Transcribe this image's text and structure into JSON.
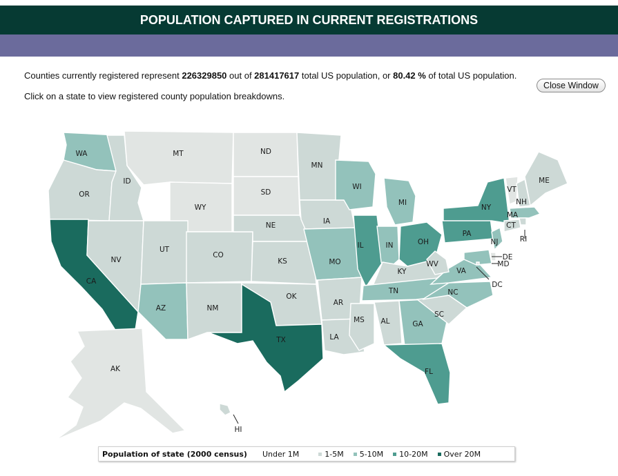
{
  "header": {
    "title": "POPULATION CAPTURED IN CURRENT REGISTRATIONS"
  },
  "stats": {
    "prefix": "Counties currently registered represent ",
    "registered_population": "226329850",
    "middle": " out of ",
    "total_population": "281417617",
    "suffix": " total US population, or ",
    "percent": "80.42 %",
    "end": " of total US population."
  },
  "instruction": "Click on a state to view registered county population breakdowns.",
  "close_button": "Close Window",
  "colors": {
    "under_1m": "#e1e5e3",
    "1_5m": "#cdd9d6",
    "5_10m": "#93c2bb",
    "10_20m": "#4e9c90",
    "over_20m": "#1a6b5e",
    "title_bar": "#063a33",
    "sub_bar": "#6b6b9c"
  },
  "legend": {
    "title": "Population of state (2000 census)",
    "items": [
      {
        "label": "Under 1M",
        "color": "#e1e5e3"
      },
      {
        "label": "1-5M",
        "color": "#cdd9d6"
      },
      {
        "label": "5-10M",
        "color": "#93c2bb"
      },
      {
        "label": "10-20M",
        "color": "#4e9c90"
      },
      {
        "label": "Over 20M",
        "color": "#1a6b5e"
      }
    ]
  },
  "states": [
    {
      "abbr": "WA",
      "class": "5_10m"
    },
    {
      "abbr": "OR",
      "class": "1_5m"
    },
    {
      "abbr": "CA",
      "class": "over_20m"
    },
    {
      "abbr": "ID",
      "class": "1_5m"
    },
    {
      "abbr": "NV",
      "class": "1_5m"
    },
    {
      "abbr": "MT",
      "class": "under_1m"
    },
    {
      "abbr": "WY",
      "class": "under_1m"
    },
    {
      "abbr": "UT",
      "class": "1_5m"
    },
    {
      "abbr": "AZ",
      "class": "5_10m"
    },
    {
      "abbr": "CO",
      "class": "1_5m"
    },
    {
      "abbr": "NM",
      "class": "1_5m"
    },
    {
      "abbr": "ND",
      "class": "under_1m"
    },
    {
      "abbr": "SD",
      "class": "under_1m"
    },
    {
      "abbr": "NE",
      "class": "1_5m"
    },
    {
      "abbr": "KS",
      "class": "1_5m"
    },
    {
      "abbr": "OK",
      "class": "1_5m"
    },
    {
      "abbr": "TX",
      "class": "over_20m"
    },
    {
      "abbr": "MN",
      "class": "1_5m"
    },
    {
      "abbr": "IA",
      "class": "1_5m"
    },
    {
      "abbr": "MO",
      "class": "5_10m"
    },
    {
      "abbr": "AR",
      "class": "1_5m"
    },
    {
      "abbr": "LA",
      "class": "1_5m"
    },
    {
      "abbr": "WI",
      "class": "5_10m"
    },
    {
      "abbr": "IL",
      "class": "10_20m"
    },
    {
      "abbr": "MI",
      "class": "5_10m"
    },
    {
      "abbr": "IN",
      "class": "5_10m"
    },
    {
      "abbr": "OH",
      "class": "10_20m"
    },
    {
      "abbr": "KY",
      "class": "1_5m"
    },
    {
      "abbr": "TN",
      "class": "5_10m"
    },
    {
      "abbr": "MS",
      "class": "1_5m"
    },
    {
      "abbr": "AL",
      "class": "1_5m"
    },
    {
      "abbr": "GA",
      "class": "5_10m"
    },
    {
      "abbr": "FL",
      "class": "10_20m"
    },
    {
      "abbr": "SC",
      "class": "1_5m"
    },
    {
      "abbr": "NC",
      "class": "5_10m"
    },
    {
      "abbr": "VA",
      "class": "5_10m"
    },
    {
      "abbr": "WV",
      "class": "1_5m"
    },
    {
      "abbr": "PA",
      "class": "10_20m"
    },
    {
      "abbr": "NY",
      "class": "10_20m"
    },
    {
      "abbr": "VT",
      "class": "under_1m"
    },
    {
      "abbr": "NH",
      "class": "1_5m"
    },
    {
      "abbr": "ME",
      "class": "1_5m"
    },
    {
      "abbr": "MA",
      "class": "5_10m"
    },
    {
      "abbr": "RI",
      "class": "1_5m"
    },
    {
      "abbr": "CT",
      "class": "1_5m"
    },
    {
      "abbr": "NJ",
      "class": "5_10m"
    },
    {
      "abbr": "DE",
      "class": "under_1m"
    },
    {
      "abbr": "MD",
      "class": "5_10m"
    },
    {
      "abbr": "DC",
      "class": "under_1m"
    },
    {
      "abbr": "AK",
      "class": "under_1m"
    },
    {
      "abbr": "HI",
      "class": "1_5m"
    }
  ]
}
